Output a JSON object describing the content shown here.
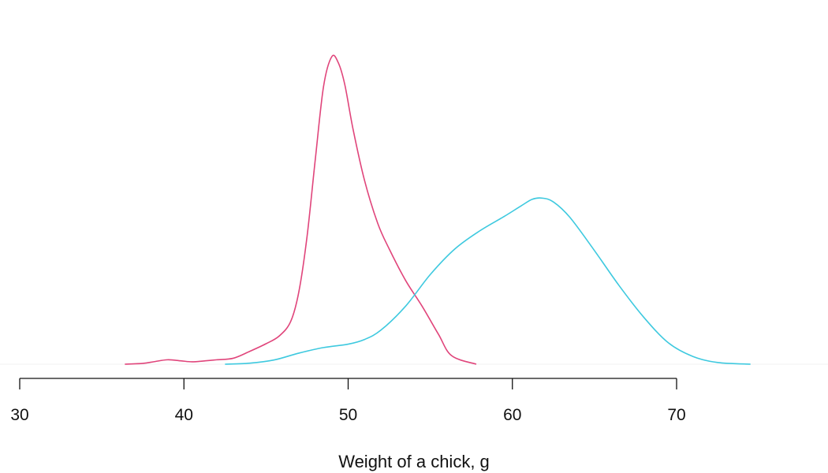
{
  "chart_data": {
    "type": "line",
    "title": "",
    "xlabel": "Weight of a chick, g",
    "ylabel": "",
    "xlim": [
      30,
      70
    ],
    "x_ticks": [
      30,
      40,
      50,
      60,
      70
    ],
    "grid": false,
    "y_axis_shown": false,
    "series": [
      {
        "color": "#e0457b",
        "x": [
          36.4,
          37.5,
          38.2,
          39.0,
          39.8,
          40.5,
          41.3,
          42.0,
          43.0,
          44.0,
          45.0,
          45.8,
          46.5,
          47.0,
          47.5,
          48.0,
          48.5,
          49.0,
          49.4,
          49.8,
          50.3,
          51.0,
          51.8,
          52.5,
          53.5,
          54.5,
          55.5,
          56.3,
          57.8
        ],
        "y": [
          0.0,
          0.01,
          0.03,
          0.052,
          0.04,
          0.028,
          0.04,
          0.052,
          0.07,
          0.15,
          0.24,
          0.33,
          0.5,
          0.85,
          1.5,
          2.4,
          3.25,
          3.6,
          3.53,
          3.27,
          2.75,
          2.15,
          1.65,
          1.35,
          0.98,
          0.68,
          0.35,
          0.1,
          0.0
        ]
      },
      {
        "color": "#3ec9df",
        "x": [
          42.5,
          44.0,
          45.5,
          47.0,
          48.5,
          50.0,
          51.0,
          52.0,
          53.5,
          55.0,
          56.5,
          58.0,
          59.5,
          60.5,
          61.2,
          61.8,
          62.5,
          63.5,
          65.0,
          66.5,
          68.0,
          69.5,
          71.0,
          72.5,
          74.5
        ],
        "y": [
          0.0,
          0.012,
          0.05,
          0.13,
          0.195,
          0.235,
          0.29,
          0.4,
          0.68,
          1.05,
          1.35,
          1.56,
          1.73,
          1.85,
          1.93,
          1.945,
          1.9,
          1.72,
          1.33,
          0.92,
          0.55,
          0.25,
          0.09,
          0.02,
          0.0
        ]
      }
    ]
  }
}
